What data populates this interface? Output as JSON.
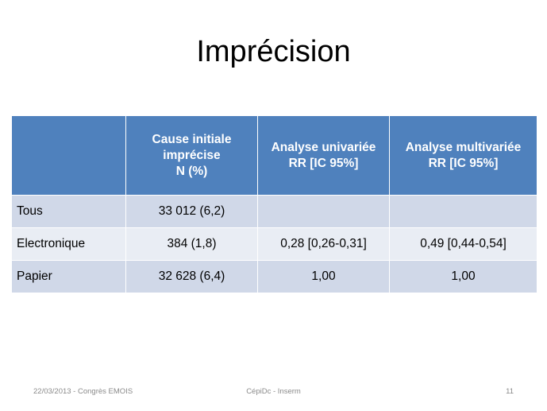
{
  "title": "Imprécision",
  "table": {
    "headers": [
      {
        "lines": []
      },
      {
        "lines": [
          "Cause initiale",
          "imprécise",
          "N (%)"
        ]
      },
      {
        "lines": [
          "Analyse univariée",
          "RR [IC 95%]"
        ]
      },
      {
        "lines": [
          "Analyse multivariée",
          "RR [IC 95%]"
        ]
      }
    ],
    "rows": [
      {
        "label": "Tous",
        "cause": "33 012 (6,2)",
        "univariee": "",
        "multivariee": ""
      },
      {
        "label": "Electronique",
        "cause": "384 (1,8)",
        "univariee": "0,28 [0,26-0,31]",
        "multivariee": "0,49 [0,44-0,54]"
      },
      {
        "label": "Papier",
        "cause": "32 628 (6,4)",
        "univariee": "1,00",
        "multivariee": "1,00"
      }
    ]
  },
  "footer": {
    "left": "22/03/2013  - Congrès EMOIS",
    "center": "CépiDc - Inserm",
    "right": "11"
  },
  "colors": {
    "header_bg": "#4f81bd",
    "row_band_a": "#d0d8e8",
    "row_band_b": "#e9edf4"
  }
}
